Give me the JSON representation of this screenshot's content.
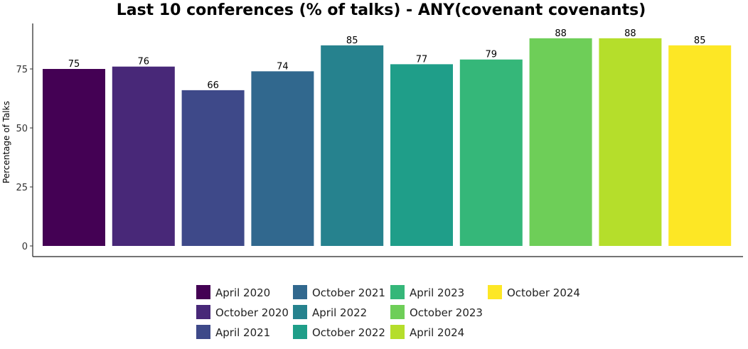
{
  "chart_data": {
    "type": "bar",
    "title": "Last 10 conferences (% of talks) -   ANY(covenant covenants)",
    "xlabel": "",
    "ylabel": "Percentage of Talks",
    "ylim": [
      0,
      94
    ],
    "yticks": [
      "0",
      "25",
      "50",
      "75"
    ],
    "yticks_values": [
      0,
      25,
      50,
      75
    ],
    "grid": false,
    "legend_position": "bottom",
    "categories": [
      "April 2020",
      "October 2020",
      "April 2021",
      "October 2021",
      "April 2022",
      "October 2022",
      "April 2023",
      "October 2023",
      "April 2024",
      "October 2024"
    ],
    "values": [
      75,
      76,
      66,
      74,
      85,
      77,
      79,
      88,
      88,
      85
    ],
    "data_labels": [
      "75",
      "76",
      "66",
      "74",
      "85",
      "77",
      "79",
      "88",
      "88",
      "85"
    ],
    "colors": [
      "#440154",
      "#482878",
      "#3e4989",
      "#31688e",
      "#26828e",
      "#1f9e89",
      "#35b779",
      "#6ece58",
      "#b5de2b",
      "#fde725"
    ]
  }
}
